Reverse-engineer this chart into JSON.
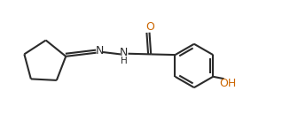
{
  "background_color": "#ffffff",
  "line_color": "#2b2b2b",
  "o_color": "#cc6600",
  "n_color": "#2b2b2b",
  "bond_width": 1.5,
  "figsize": [
    3.27,
    1.37
  ],
  "dpi": 100,
  "xlim": [
    0,
    9.5
  ],
  "ylim": [
    0,
    3.2
  ]
}
